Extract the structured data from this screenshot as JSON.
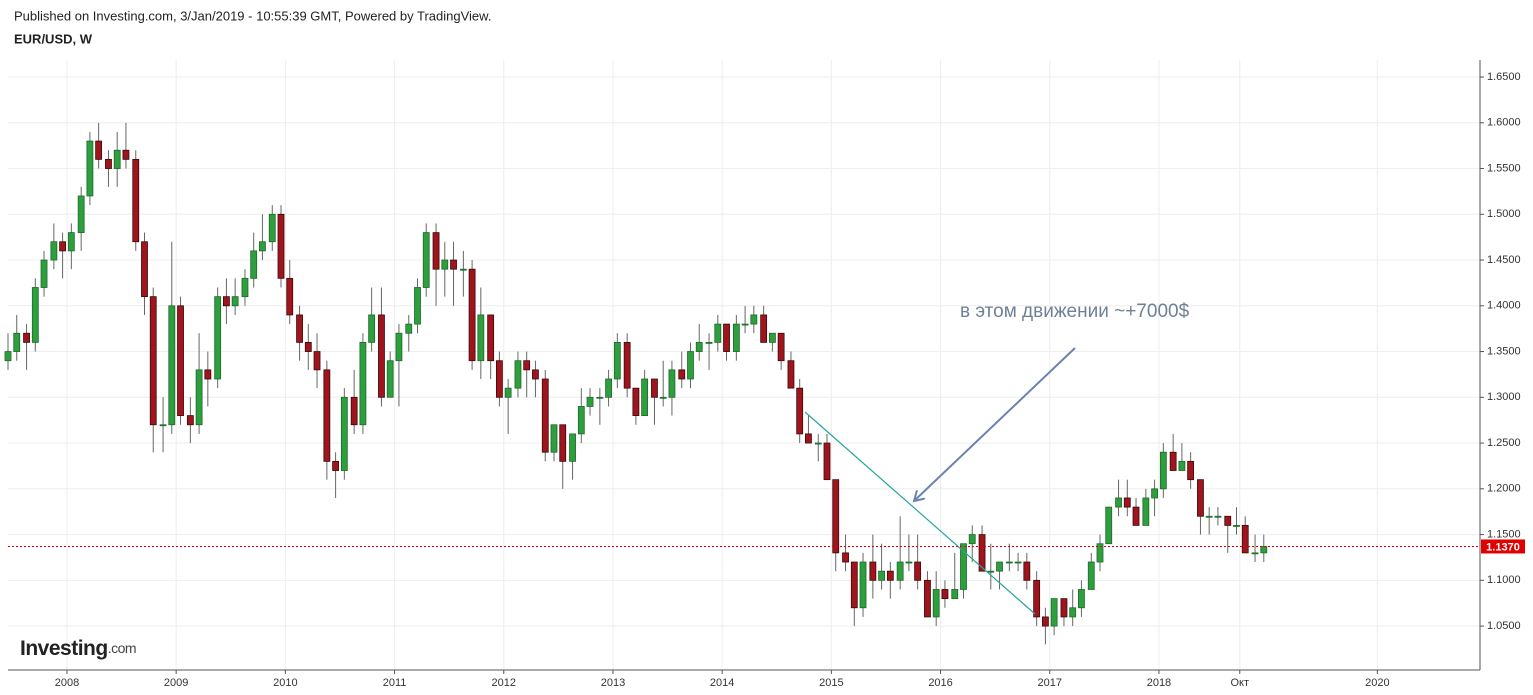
{
  "header": {
    "published": "Published on Investing.com, 3/Jan/2019 - 10:55:39 GMT, Powered by TradingView.",
    "logo_main": "Investing",
    "logo_suffix": ".com"
  },
  "chart_data": {
    "type": "candlestick",
    "title": "EUR/USD, W",
    "annotation": "в этом движении ~+7000$",
    "up_color": "#2e9e3e",
    "down_color": "#a0141e",
    "grid": true,
    "current_price": {
      "value": 1.137,
      "label": "1.1370"
    },
    "current_price_color": "#e00000",
    "xlim": [
      2007.46,
      2020.94
    ],
    "ylim": [
      1.002,
      1.6686
    ],
    "xticks": [
      2008,
      2009,
      2010,
      2011,
      2012,
      2013,
      2014,
      2015,
      2016,
      2017,
      2018,
      {
        "value": 2018.74,
        "label": "Окт"
      },
      2020
    ],
    "yticks": [
      {
        "value": 1.05,
        "label": "1.0500"
      },
      {
        "value": 1.1,
        "label": "1.1000"
      },
      {
        "value": 1.15,
        "label": "1.1500"
      },
      {
        "value": 1.2,
        "label": "1.2000"
      },
      {
        "value": 1.25,
        "label": "1.2500"
      },
      {
        "value": 1.3,
        "label": "1.3000"
      },
      {
        "value": 1.35,
        "label": "1.3500"
      },
      {
        "value": 1.4,
        "label": "1.4000"
      },
      {
        "value": 1.45,
        "label": "1.4500"
      },
      {
        "value": 1.5,
        "label": "1.5000"
      },
      {
        "value": 1.55,
        "label": "1.5500"
      },
      {
        "value": 1.6,
        "label": "1.6000"
      },
      {
        "value": 1.65,
        "label": "1.6500"
      }
    ],
    "x": [
      2007.46,
      2007.54,
      2007.63,
      2007.71,
      2007.79,
      2007.88,
      2007.96,
      2008.04,
      2008.13,
      2008.21,
      2008.29,
      2008.38,
      2008.46,
      2008.54,
      2008.63,
      2008.71,
      2008.79,
      2008.88,
      2008.96,
      2009.04,
      2009.13,
      2009.21,
      2009.29,
      2009.38,
      2009.46,
      2009.54,
      2009.63,
      2009.71,
      2009.79,
      2009.88,
      2009.96,
      2010.04,
      2010.13,
      2010.21,
      2010.29,
      2010.38,
      2010.46,
      2010.54,
      2010.63,
      2010.71,
      2010.79,
      2010.88,
      2010.96,
      2011.04,
      2011.13,
      2011.21,
      2011.29,
      2011.38,
      2011.46,
      2011.54,
      2011.63,
      2011.71,
      2011.79,
      2011.88,
      2011.96,
      2012.04,
      2012.13,
      2012.21,
      2012.29,
      2012.38,
      2012.46,
      2012.54,
      2012.63,
      2012.71,
      2012.79,
      2012.88,
      2012.96,
      2013.04,
      2013.13,
      2013.21,
      2013.29,
      2013.38,
      2013.46,
      2013.54,
      2013.63,
      2013.71,
      2013.79,
      2013.88,
      2013.96,
      2014.04,
      2014.13,
      2014.21,
      2014.29,
      2014.38,
      2014.46,
      2014.54,
      2014.63,
      2014.71,
      2014.79,
      2014.88,
      2014.96,
      2015.04,
      2015.13,
      2015.21,
      2015.29,
      2015.38,
      2015.46,
      2015.54,
      2015.63,
      2015.71,
      2015.79,
      2015.88,
      2015.96,
      2016.04,
      2016.13,
      2016.21,
      2016.29,
      2016.38,
      2016.46,
      2016.54,
      2016.63,
      2016.71,
      2016.79,
      2016.88,
      2016.96,
      2017.04,
      2017.13,
      2017.21,
      2017.29,
      2017.38,
      2017.46,
      2017.54,
      2017.63,
      2017.71,
      2017.79,
      2017.88,
      2017.96,
      2018.04,
      2018.13,
      2018.21,
      2018.29,
      2018.38,
      2018.46,
      2018.54,
      2018.63,
      2018.71,
      2018.79,
      2018.88,
      2018.96
    ],
    "open": [
      1.34,
      1.35,
      1.37,
      1.36,
      1.42,
      1.45,
      1.47,
      1.46,
      1.48,
      1.52,
      1.58,
      1.56,
      1.55,
      1.57,
      1.56,
      1.47,
      1.41,
      1.27,
      1.27,
      1.4,
      1.28,
      1.27,
      1.33,
      1.32,
      1.41,
      1.4,
      1.41,
      1.43,
      1.46,
      1.47,
      1.5,
      1.43,
      1.39,
      1.36,
      1.35,
      1.33,
      1.23,
      1.22,
      1.3,
      1.27,
      1.36,
      1.39,
      1.3,
      1.34,
      1.37,
      1.38,
      1.42,
      1.48,
      1.44,
      1.45,
      1.44,
      1.44,
      1.34,
      1.39,
      1.34,
      1.3,
      1.31,
      1.34,
      1.33,
      1.32,
      1.24,
      1.27,
      1.23,
      1.26,
      1.29,
      1.3,
      1.3,
      1.32,
      1.36,
      1.31,
      1.28,
      1.32,
      1.3,
      1.3,
      1.33,
      1.32,
      1.35,
      1.36,
      1.36,
      1.38,
      1.35,
      1.38,
      1.38,
      1.39,
      1.36,
      1.37,
      1.34,
      1.31,
      1.26,
      1.25,
      1.25,
      1.21,
      1.13,
      1.12,
      1.07,
      1.12,
      1.1,
      1.11,
      1.1,
      1.12,
      1.12,
      1.1,
      1.06,
      1.09,
      1.08,
      1.09,
      1.14,
      1.15,
      1.11,
      1.11,
      1.12,
      1.12,
      1.12,
      1.1,
      1.06,
      1.05,
      1.08,
      1.06,
      1.07,
      1.09,
      1.12,
      1.14,
      1.18,
      1.19,
      1.18,
      1.16,
      1.19,
      1.2,
      1.24,
      1.22,
      1.23,
      1.21,
      1.17,
      1.17,
      1.17,
      1.16,
      1.16,
      1.13,
      1.13
    ],
    "high": [
      1.37,
      1.39,
      1.38,
      1.43,
      1.46,
      1.49,
      1.48,
      1.49,
      1.53,
      1.59,
      1.6,
      1.57,
      1.59,
      1.6,
      1.57,
      1.48,
      1.42,
      1.3,
      1.47,
      1.41,
      1.3,
      1.37,
      1.35,
      1.42,
      1.43,
      1.43,
      1.44,
      1.48,
      1.5,
      1.51,
      1.51,
      1.45,
      1.4,
      1.38,
      1.37,
      1.34,
      1.24,
      1.31,
      1.33,
      1.37,
      1.42,
      1.42,
      1.35,
      1.38,
      1.39,
      1.43,
      1.49,
      1.49,
      1.47,
      1.47,
      1.46,
      1.45,
      1.42,
      1.39,
      1.35,
      1.32,
      1.35,
      1.35,
      1.34,
      1.33,
      1.27,
      1.27,
      1.26,
      1.31,
      1.31,
      1.31,
      1.33,
      1.37,
      1.37,
      1.31,
      1.33,
      1.32,
      1.34,
      1.34,
      1.35,
      1.36,
      1.38,
      1.37,
      1.39,
      1.38,
      1.39,
      1.4,
      1.4,
      1.4,
      1.37,
      1.37,
      1.35,
      1.32,
      1.28,
      1.26,
      1.26,
      1.21,
      1.15,
      1.12,
      1.13,
      1.15,
      1.14,
      1.12,
      1.17,
      1.15,
      1.15,
      1.11,
      1.11,
      1.1,
      1.13,
      1.14,
      1.16,
      1.16,
      1.14,
      1.12,
      1.14,
      1.13,
      1.13,
      1.11,
      1.07,
      1.08,
      1.08,
      1.09,
      1.1,
      1.13,
      1.15,
      1.18,
      1.21,
      1.21,
      1.19,
      1.2,
      1.21,
      1.25,
      1.26,
      1.25,
      1.24,
      1.21,
      1.18,
      1.18,
      1.17,
      1.18,
      1.17,
      1.15,
      1.15
    ],
    "low": [
      1.33,
      1.34,
      1.33,
      1.35,
      1.41,
      1.44,
      1.43,
      1.44,
      1.46,
      1.51,
      1.55,
      1.53,
      1.53,
      1.55,
      1.46,
      1.39,
      1.24,
      1.24,
      1.26,
      1.27,
      1.25,
      1.26,
      1.29,
      1.31,
      1.38,
      1.39,
      1.4,
      1.42,
      1.45,
      1.46,
      1.42,
      1.38,
      1.34,
      1.33,
      1.31,
      1.21,
      1.19,
      1.21,
      1.26,
      1.26,
      1.35,
      1.29,
      1.3,
      1.29,
      1.35,
      1.37,
      1.41,
      1.4,
      1.41,
      1.4,
      1.41,
      1.33,
      1.32,
      1.32,
      1.29,
      1.26,
      1.3,
      1.3,
      1.3,
      1.23,
      1.23,
      1.2,
      1.21,
      1.25,
      1.28,
      1.27,
      1.29,
      1.31,
      1.3,
      1.27,
      1.28,
      1.27,
      1.29,
      1.28,
      1.31,
      1.31,
      1.34,
      1.33,
      1.35,
      1.34,
      1.34,
      1.37,
      1.37,
      1.36,
      1.35,
      1.33,
      1.31,
      1.25,
      1.25,
      1.23,
      1.21,
      1.11,
      1.11,
      1.05,
      1.06,
      1.08,
      1.09,
      1.08,
      1.09,
      1.11,
      1.09,
      1.06,
      1.05,
      1.07,
      1.08,
      1.08,
      1.12,
      1.11,
      1.09,
      1.09,
      1.11,
      1.11,
      1.09,
      1.05,
      1.03,
      1.04,
      1.05,
      1.05,
      1.06,
      1.09,
      1.11,
      1.14,
      1.17,
      1.17,
      1.16,
      1.16,
      1.17,
      1.19,
      1.22,
      1.22,
      1.2,
      1.15,
      1.15,
      1.16,
      1.13,
      1.15,
      1.13,
      1.12,
      1.12
    ],
    "close": [
      1.35,
      1.37,
      1.36,
      1.42,
      1.45,
      1.47,
      1.46,
      1.48,
      1.52,
      1.58,
      1.56,
      1.55,
      1.57,
      1.56,
      1.47,
      1.41,
      1.27,
      1.27,
      1.4,
      1.28,
      1.27,
      1.33,
      1.32,
      1.41,
      1.4,
      1.41,
      1.43,
      1.46,
      1.47,
      1.5,
      1.43,
      1.39,
      1.36,
      1.35,
      1.33,
      1.23,
      1.22,
      1.3,
      1.27,
      1.36,
      1.39,
      1.3,
      1.34,
      1.37,
      1.38,
      1.42,
      1.48,
      1.44,
      1.45,
      1.44,
      1.44,
      1.34,
      1.39,
      1.34,
      1.3,
      1.31,
      1.34,
      1.33,
      1.32,
      1.24,
      1.27,
      1.23,
      1.26,
      1.29,
      1.3,
      1.3,
      1.32,
      1.36,
      1.31,
      1.28,
      1.32,
      1.3,
      1.3,
      1.33,
      1.32,
      1.35,
      1.36,
      1.36,
      1.38,
      1.35,
      1.38,
      1.38,
      1.39,
      1.36,
      1.37,
      1.34,
      1.31,
      1.26,
      1.25,
      1.25,
      1.21,
      1.13,
      1.12,
      1.07,
      1.12,
      1.1,
      1.11,
      1.1,
      1.12,
      1.12,
      1.1,
      1.06,
      1.09,
      1.08,
      1.09,
      1.14,
      1.15,
      1.11,
      1.11,
      1.12,
      1.12,
      1.12,
      1.1,
      1.06,
      1.05,
      1.08,
      1.06,
      1.07,
      1.09,
      1.12,
      1.14,
      1.18,
      1.19,
      1.18,
      1.16,
      1.19,
      1.2,
      1.24,
      1.22,
      1.23,
      1.21,
      1.17,
      1.17,
      1.17,
      1.16,
      1.16,
      1.13,
      1.13,
      1.137
    ]
  }
}
